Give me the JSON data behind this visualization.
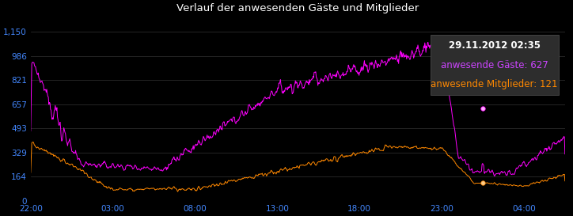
{
  "title": "Verlauf der anwesenden Gäste und Mitglieder",
  "background_color": "#000000",
  "plot_bg_color": "#000000",
  "title_color": "#ffffff",
  "grid_color": "#2a2a2a",
  "yticks": [
    0,
    164,
    329,
    493,
    657,
    821,
    986,
    1150
  ],
  "ytick_labels": [
    "0",
    "164",
    "329",
    "493",
    "657",
    "821",
    "986",
    "1,150"
  ],
  "xtick_labels": [
    "22:00",
    "03:00",
    "08:00",
    "13:00",
    "18:00",
    "23:00",
    "04:00"
  ],
  "xtick_color": "#4488ff",
  "ytick_color": "#4488ff",
  "magenta_color": "#ff00ff",
  "orange_color": "#ff8800",
  "tooltip_bg": "#2d2d2d",
  "tooltip_title_color": "#ffffff",
  "tooltip_guests_color": "#cc44ff",
  "tooltip_members_color": "#ff8800",
  "tooltip_text_line1": "29.11.2012 02:35",
  "tooltip_text_line2": "anwesende Gäste: 627",
  "tooltip_text_line3": "anwesende Mitglieder: 121"
}
